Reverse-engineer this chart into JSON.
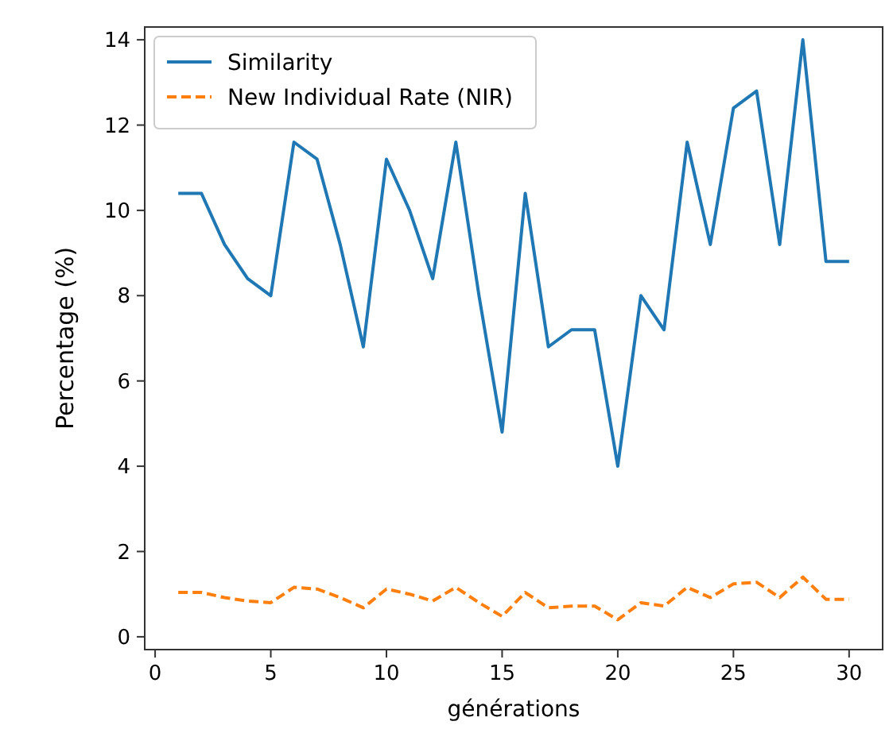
{
  "chart_data": {
    "type": "line",
    "xlabel": "générations",
    "ylabel": "Percentage (%)",
    "x": [
      1,
      2,
      3,
      4,
      5,
      6,
      7,
      8,
      9,
      10,
      11,
      12,
      13,
      14,
      15,
      16,
      17,
      18,
      19,
      20,
      21,
      22,
      23,
      24,
      25,
      26,
      27,
      28,
      29,
      30
    ],
    "series": [
      {
        "name": "Similarity",
        "color": "#1f77b4",
        "line_style": "solid",
        "values": [
          10.4,
          10.4,
          9.2,
          8.4,
          8.0,
          11.6,
          11.2,
          9.2,
          6.8,
          11.2,
          10.0,
          8.4,
          11.6,
          8.0,
          4.8,
          10.4,
          6.8,
          7.2,
          7.2,
          4.0,
          8.0,
          7.2,
          11.6,
          9.2,
          12.4,
          12.8,
          9.2,
          14.0,
          8.8,
          8.8
        ]
      },
      {
        "name": "New Individual Rate (NIR)",
        "color": "#ff7f0e",
        "line_style": "dashed",
        "values": [
          1.04,
          1.04,
          0.92,
          0.84,
          0.8,
          1.16,
          1.12,
          0.92,
          0.68,
          1.12,
          1.0,
          0.84,
          1.16,
          0.8,
          0.48,
          1.04,
          0.68,
          0.72,
          0.72,
          0.4,
          0.8,
          0.72,
          1.16,
          0.92,
          1.24,
          1.28,
          0.92,
          1.4,
          0.88,
          0.88
        ]
      }
    ],
    "xlim": [
      -0.45,
      31.45
    ],
    "xticks": [
      0,
      5,
      10,
      15,
      20,
      25,
      30
    ],
    "ylim": [
      -0.3,
      14.3
    ],
    "yticks": [
      0,
      2,
      4,
      6,
      8,
      10,
      12,
      14
    ],
    "grid": false,
    "legend": "top left",
    "marker": "none"
  }
}
